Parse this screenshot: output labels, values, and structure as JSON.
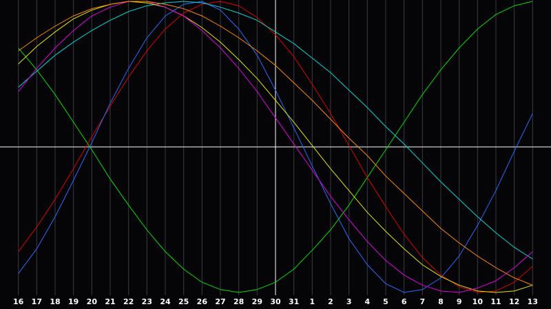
{
  "chart_data": {
    "type": "line",
    "categories": [
      "16",
      "17",
      "18",
      "19",
      "20",
      "21",
      "22",
      "23",
      "24",
      "25",
      "26",
      "27",
      "28",
      "29",
      "30",
      "31",
      "1",
      "2",
      "3",
      "4",
      "5",
      "6",
      "7",
      "8",
      "9",
      "10",
      "11",
      "12",
      "13"
    ],
    "current": "30",
    "ylim": [
      -100,
      100
    ],
    "grid": true,
    "series": [
      {
        "color": "#00e000",
        "values": [
          68,
          53,
          36,
          17,
          -2,
          -22,
          -40,
          -57,
          -72,
          -84,
          -93,
          -98,
          -100,
          -98,
          -93,
          -84,
          -71,
          -57,
          -40,
          -21,
          -2,
          17,
          36,
          53,
          68,
          81,
          91,
          97,
          100
        ]
      },
      {
        "color": "#e00000",
        "values": [
          -72,
          -55,
          -36,
          -15,
          7,
          28,
          48,
          66,
          81,
          92,
          98,
          100,
          97,
          89,
          77,
          62,
          43,
          23,
          1,
          -21,
          -41,
          -60,
          -76,
          -88,
          -96,
          -100,
          -99,
          -93,
          -82
        ]
      },
      {
        "color": "#2a6cff",
        "values": [
          -87,
          -70,
          -48,
          -23,
          3,
          30,
          54,
          75,
          90,
          98,
          100,
          94,
          81,
          63,
          39,
          13,
          -13,
          -39,
          -63,
          -81,
          -94,
          -100,
          -98,
          -90,
          -75,
          -54,
          -30,
          -3,
          23
        ]
      },
      {
        "color": "#00d8d8",
        "values": [
          41,
          52,
          63,
          72,
          80,
          87,
          93,
          97,
          99,
          100,
          99,
          96,
          92,
          87,
          79,
          71,
          61,
          51,
          39,
          27,
          14,
          2,
          -11,
          -24,
          -36,
          -48,
          -59,
          -69,
          -77
        ]
      },
      {
        "color": "#e8e800",
        "values": [
          57,
          69,
          79,
          88,
          94,
          98,
          100,
          99,
          96,
          90,
          82,
          72,
          60,
          47,
          32,
          17,
          1,
          -15,
          -30,
          -45,
          -58,
          -70,
          -81,
          -89,
          -95,
          -99,
          -100,
          -99,
          -95
        ]
      },
      {
        "color": "#e000e0",
        "values": [
          38,
          54,
          68,
          80,
          90,
          96,
          100,
          100,
          96,
          90,
          80,
          68,
          54,
          38,
          20,
          2,
          -16,
          -34,
          -50,
          -65,
          -78,
          -88,
          -95,
          -99,
          -100,
          -97,
          -92,
          -83,
          -72
        ]
      },
      {
        "color": "#ff8c00",
        "values": [
          66,
          75,
          83,
          90,
          95,
          98,
          100,
          100,
          98,
          95,
          90,
          83,
          75,
          66,
          56,
          44,
          32,
          19,
          6,
          -6,
          -20,
          -32,
          -44,
          -56,
          -66,
          -75,
          -83,
          -90,
          -95
        ]
      }
    ]
  }
}
